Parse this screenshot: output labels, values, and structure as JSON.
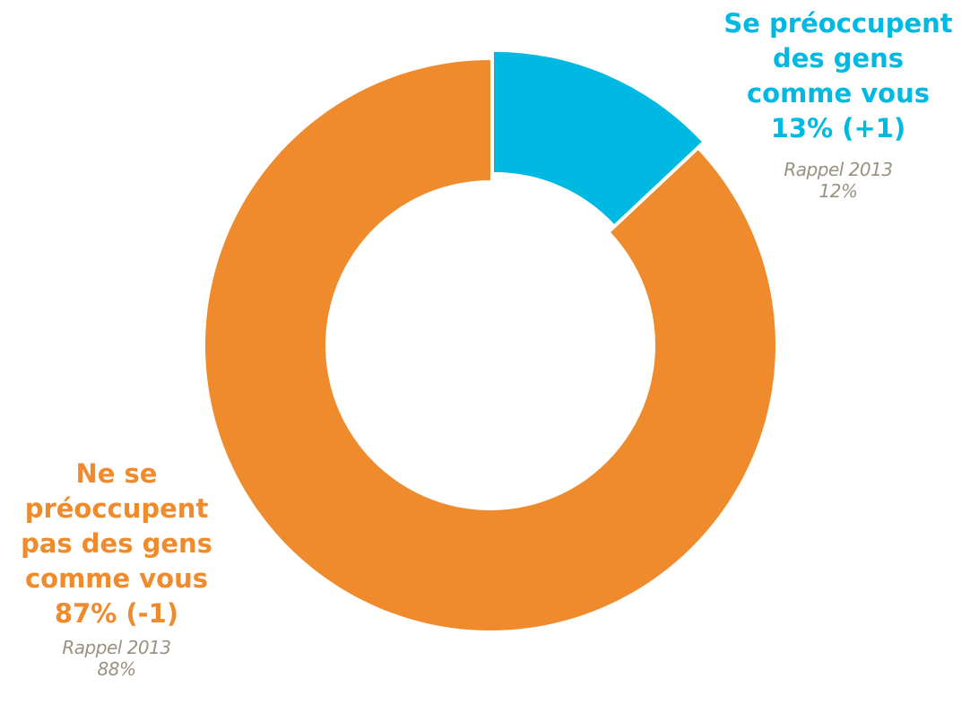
{
  "colors": {
    "blue": "#00b9e3",
    "orange": "#ef8b2d",
    "recall_gray": "#9b9180"
  },
  "chart_data": {
    "type": "pie",
    "variant": "donut",
    "slices": [
      {
        "label_lines": [
          "Se préoccupent",
          "des gens",
          "comme vous"
        ],
        "value_text": "13% (+1)",
        "value": 13,
        "change": 1,
        "recall_label": "Rappel 2013",
        "recall_value_text": "12%",
        "recall_value": 12,
        "color": "#00b9e3",
        "exploded": true
      },
      {
        "label_lines": [
          "Ne se",
          "préoccupent",
          "pas des gens",
          "comme vous"
        ],
        "value_text": "87% (-1)",
        "value": 87,
        "change": -1,
        "recall_label": "Rappel 2013",
        "recall_value_text": "88%",
        "recall_value": 88,
        "color": "#ef8b2d",
        "exploded": false
      }
    ]
  }
}
